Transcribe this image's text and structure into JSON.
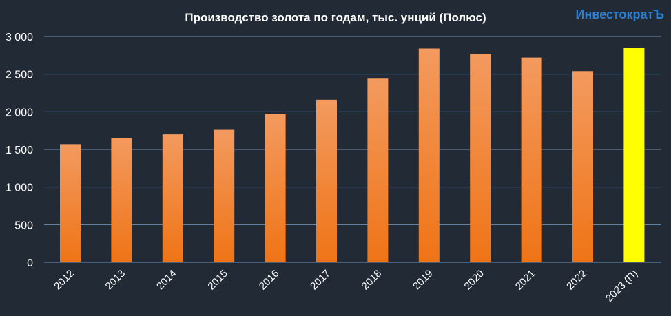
{
  "chart_data": {
    "type": "bar",
    "title": "Производство золота по годам, тыс. унций (Полюс)",
    "categories": [
      "2012",
      "2013",
      "2014",
      "2015",
      "2016",
      "2017",
      "2018",
      "2019",
      "2020",
      "2021",
      "2022",
      "2023 (П)"
    ],
    "values": [
      1570,
      1650,
      1700,
      1760,
      1970,
      2160,
      2440,
      2840,
      2770,
      2720,
      2540,
      2850
    ],
    "highlight_index": 11,
    "ylim": [
      0,
      3000
    ],
    "yticks": [
      0,
      500,
      1000,
      1500,
      2000,
      2500,
      3000
    ],
    "ytick_labels": [
      "0",
      "500",
      "1 000",
      "1 500",
      "2 000",
      "2 500",
      "3 000"
    ],
    "xlabel": "",
    "ylabel": "",
    "grid": true,
    "legend": "none",
    "colors": {
      "bar_top": "#f39a5f",
      "bar_bottom": "#ef7416",
      "highlight": "#ffff00",
      "grid": "#6d8fb3",
      "background": "#222a36"
    }
  },
  "watermark": "ИнвестократЪ"
}
